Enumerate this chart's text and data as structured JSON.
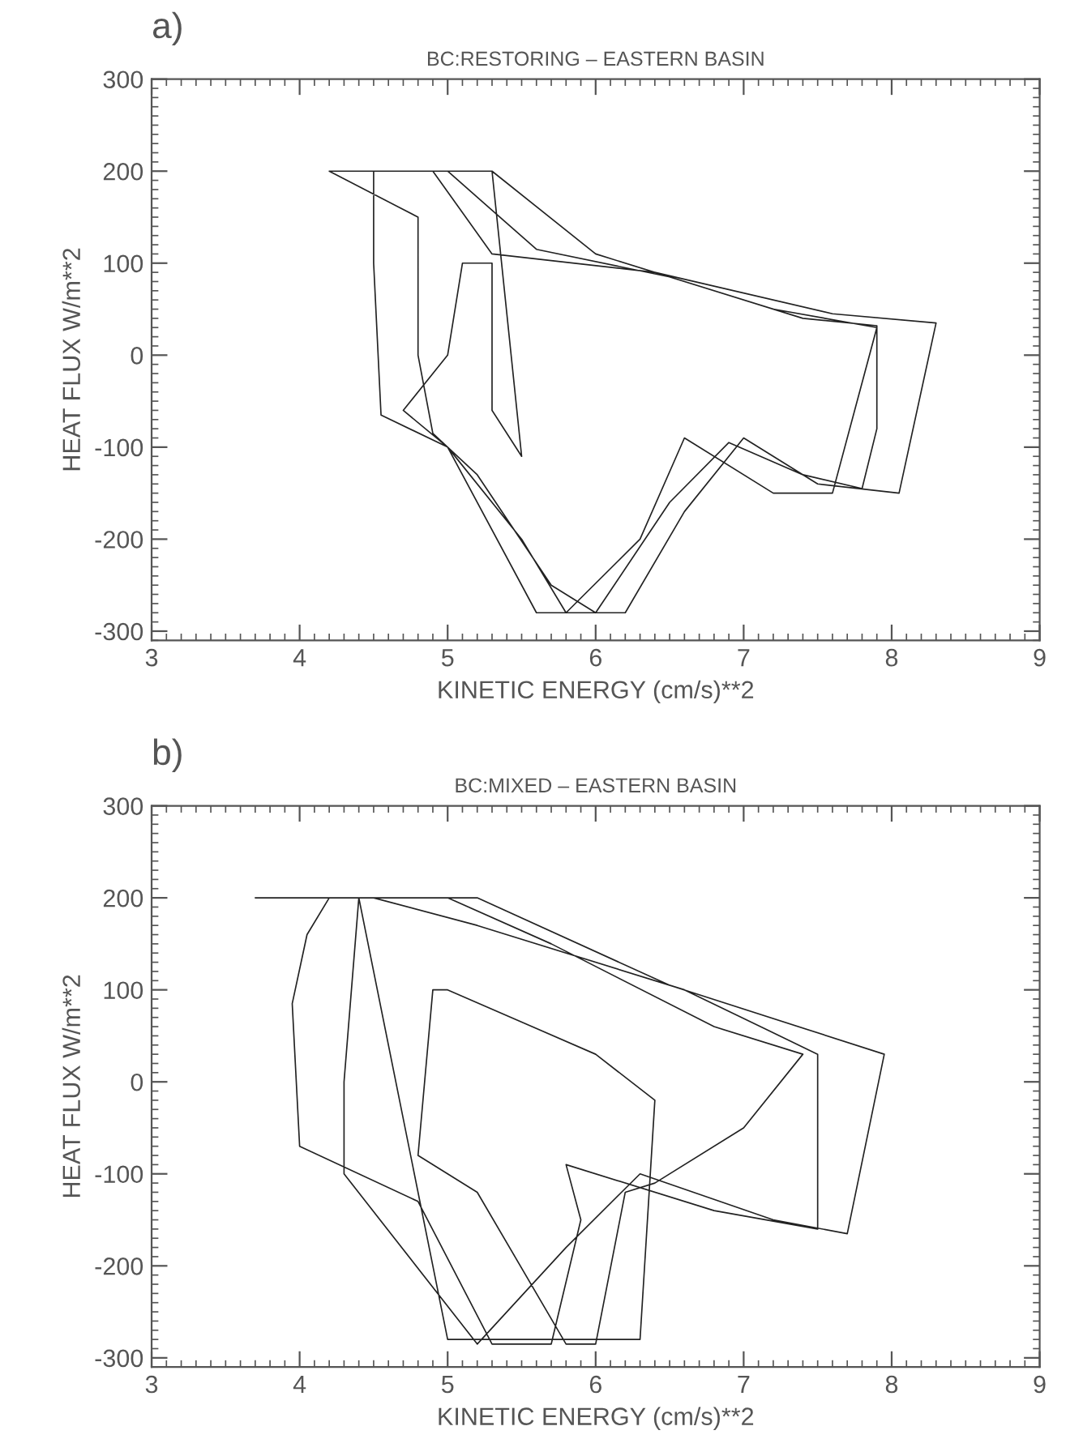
{
  "chart_data": [
    {
      "type": "line",
      "title": "BC:RESTORING – EASTERN BASIN",
      "xlabel": "KINETIC ENERGY (cm/s)**2",
      "ylabel": "HEAT FLUX W/m**2",
      "annotations": [
        "a)"
      ],
      "xlim": [
        3,
        9
      ],
      "xticks": [
        3,
        4,
        5,
        6,
        7,
        8,
        9
      ],
      "ylim": [
        -310,
        300
      ],
      "yticks": [
        -300,
        -200,
        -100,
        0,
        100,
        200,
        300
      ],
      "grid": false,
      "legend": false,
      "line_style": "solid",
      "marker": "none",
      "series": [
        {
          "color": "#222222",
          "x": [
            4.6,
            5.0,
            5.6,
            6.5,
            7.4,
            7.9,
            7.9,
            7.8,
            7.4,
            6.9,
            6.5,
            6.0,
            5.7,
            5.2,
            4.9,
            4.8,
            4.8,
            4.2,
            4.9,
            5.3,
            6.4,
            7.6,
            8.3,
            8.05,
            7.5,
            7.0,
            6.6,
            6.2,
            5.6,
            5.0,
            4.55,
            4.5,
            4.5,
            5.3,
            6.0,
            7.2,
            7.9,
            7.6,
            7.2,
            6.6,
            6.3,
            5.8,
            5.5,
            5.0,
            4.7,
            5.0,
            5.1,
            5.3,
            5.3,
            5.5,
            5.3,
            4.7
          ],
          "values": [
            200,
            200,
            115,
            85,
            40,
            32,
            -80,
            -145,
            -130,
            -95,
            -160,
            -280,
            -250,
            -130,
            -85,
            0,
            150,
            200,
            200,
            110,
            90,
            45,
            35,
            -150,
            -140,
            -90,
            -170,
            -280,
            -280,
            -100,
            -65,
            100,
            200,
            200,
            110,
            50,
            30,
            -150,
            -150,
            -90,
            -200,
            -280,
            -200,
            -100,
            -60,
            0,
            100,
            100,
            -60,
            -110,
            200,
            200
          ]
        }
      ]
    },
    {
      "type": "line",
      "title": "BC:MIXED – EASTERN BASIN",
      "xlabel": "KINETIC ENERGY (cm/s)**2",
      "ylabel": "HEAT FLUX W/m**2",
      "annotations": [
        "b)"
      ],
      "xlim": [
        3,
        9
      ],
      "xticks": [
        3,
        4,
        5,
        6,
        7,
        8,
        9
      ],
      "ylim": [
        -310,
        300
      ],
      "yticks": [
        -300,
        -200,
        -100,
        0,
        100,
        200,
        300
      ],
      "grid": false,
      "legend": false,
      "line_style": "solid",
      "marker": "none",
      "series": [
        {
          "color": "#222222",
          "x": [
            3.7,
            4.5,
            5.2,
            6.6,
            7.5,
            7.5,
            7.5,
            6.8,
            5.8,
            5.9,
            5.7,
            5.3,
            4.8,
            4.0,
            3.95,
            4.05,
            4.2,
            5.2,
            6.5,
            7.95,
            7.7,
            7.2,
            6.3,
            5.8,
            5.2,
            4.3,
            4.3,
            4.4,
            5.0,
            5.7,
            6.8,
            7.4,
            7.0,
            6.4,
            6.2,
            6.0,
            5.8,
            5.2,
            4.8,
            4.9,
            5.0,
            6.0,
            6.4,
            6.3,
            5.0,
            4.4
          ],
          "values": [
            200,
            200,
            170,
            100,
            30,
            -90,
            -160,
            -140,
            -90,
            -150,
            -285,
            -285,
            -130,
            -70,
            85,
            160,
            200,
            200,
            105,
            30,
            -165,
            -150,
            -100,
            -180,
            -285,
            -100,
            0,
            200,
            200,
            150,
            60,
            30,
            -50,
            -110,
            -120,
            -285,
            -285,
            -120,
            -80,
            100,
            100,
            30,
            -20,
            -280,
            -280,
            200
          ]
        }
      ]
    }
  ]
}
